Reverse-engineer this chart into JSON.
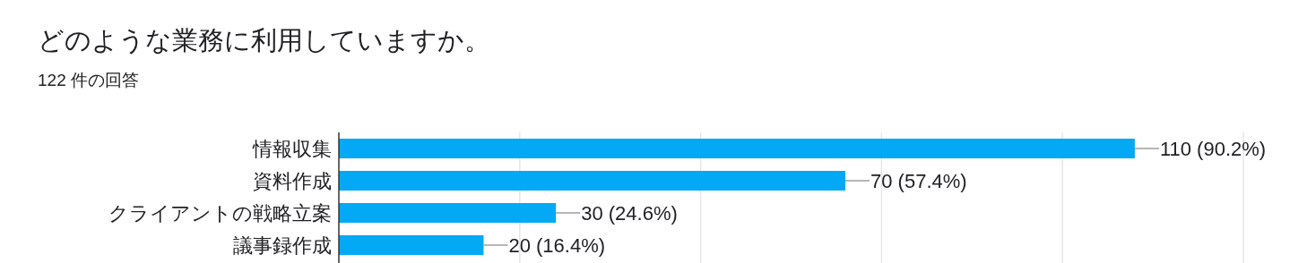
{
  "chart_data": {
    "type": "bar",
    "orientation": "horizontal",
    "title": "どのような業務に利用していますか。",
    "subtitle": "122 件の回答",
    "categories": [
      "情報収集",
      "資料作成",
      "クライアントの戦略立案",
      "議事録作成"
    ],
    "values": [
      110,
      70,
      30,
      20
    ],
    "value_labels": [
      "110 (90.2%)",
      "70 (57.4%)",
      "30 (24.6%)",
      "20 (16.4%)"
    ],
    "color": "#03a9f4",
    "xlim": [
      0,
      125
    ],
    "xticks": [
      {
        "value": 25,
        "label": null
      },
      {
        "value": 50,
        "label": null
      },
      {
        "value": 75,
        "label": null
      },
      {
        "value": 100,
        "label": null
      },
      {
        "value": 125,
        "label": null
      }
    ],
    "grid": "x",
    "tick_labels": "y"
  }
}
